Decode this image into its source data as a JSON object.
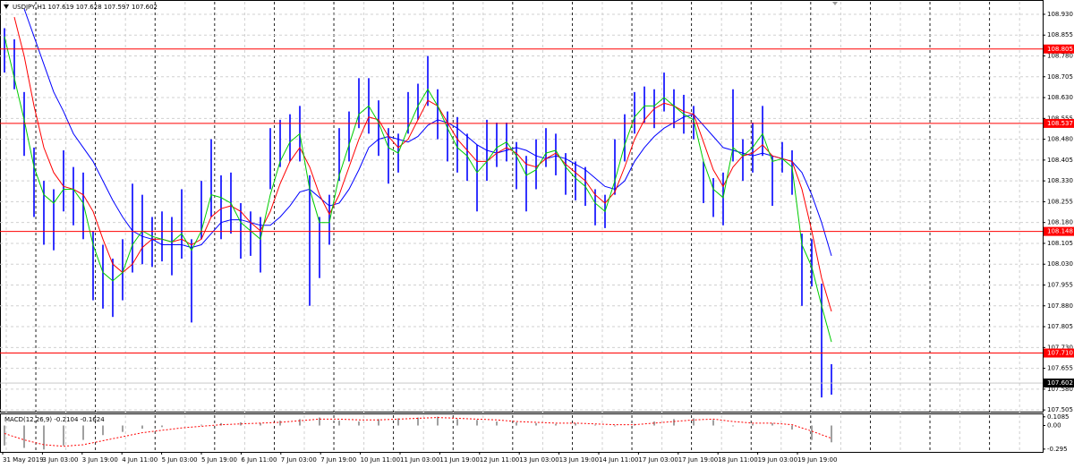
{
  "chart_data": {
    "type": "ohlc",
    "title": "USDJPY,H1 107.619 107.628 107.597 107.602",
    "ylim": [
      108.975,
      107.499
    ],
    "yticks": [
      {
        "value": 108.93,
        "label": "108.930"
      },
      108.855,
      {
        "value": 108.78,
        "label": "108.780"
      },
      108.705,
      {
        "value": 108.63,
        "label": "108.630"
      },
      108.555,
      {
        "value": 108.48,
        "label": "108.480"
      },
      108.405,
      {
        "value": 108.33,
        "label": "108.330"
      },
      108.255,
      {
        "value": 108.18,
        "label": "108.180"
      },
      108.105,
      {
        "value": 108.03,
        "label": "108.030"
      },
      107.955,
      {
        "value": 107.88,
        "label": "107.880"
      },
      107.805,
      {
        "value": 107.73,
        "label": "107.730"
      },
      107.655,
      {
        "value": 107.58,
        "label": "107.580"
      },
      107.505
    ],
    "grid": true,
    "bar_color": "#0000ff",
    "levels_color": "#ff0000",
    "levels": [
      108.805,
      108.537,
      108.148,
      {
        "value": 107.71,
        "label": "107.710"
      }
    ],
    "last_price": 107.602,
    "categories": [
      "31 May 2019",
      "3 Jun 03:00",
      "3 Jun 19:00",
      "4 Jun 11:00",
      "5 Jun 03:00",
      "5 Jun 19:00",
      "6 Jun 11:00",
      "7 Jun 03:00",
      "7 Jun 19:00",
      "10 Jun 11:00",
      "11 Jun 03:00",
      "11 Jun 19:00",
      "12 Jun 11:00",
      "13 Jun 03:00",
      "13 Jun 19:00",
      "14 Jun 11:00",
      "17 Jun 03:00",
      "17 Jun 19:00",
      "18 Jun 11:00",
      "19 Jun 03:00",
      "19 Jun 19:00"
    ],
    "high": [
      108.88,
      108.84,
      108.65,
      108.45,
      108.33,
      108.3,
      108.44,
      108.38,
      108.36,
      108.15,
      108.1,
      108.05,
      108.12,
      108.32,
      108.28,
      108.2,
      108.22,
      108.2,
      108.3,
      108.12,
      108.33,
      108.48,
      108.35,
      108.36,
      108.25,
      108.22,
      108.2,
      108.52,
      108.55,
      108.57,
      108.6,
      108.35,
      108.2,
      108.28,
      108.52,
      108.58,
      108.7,
      108.7,
      108.62,
      108.52,
      108.5,
      108.65,
      108.68,
      108.78,
      108.66,
      108.58,
      108.56,
      108.5,
      108.46,
      108.55,
      108.54,
      108.54,
      108.47,
      108.42,
      108.48,
      108.52,
      108.5,
      108.43,
      108.4,
      108.38,
      108.3,
      108.28,
      108.48,
      108.57,
      108.65,
      108.67,
      108.66,
      108.72,
      108.66,
      108.64,
      108.6,
      108.4,
      108.34,
      108.36,
      108.66,
      108.48,
      108.54,
      108.6,
      108.42,
      108.47,
      108.44,
      108.14,
      108.12,
      107.96,
      107.67
    ],
    "low": [
      108.72,
      108.66,
      108.42,
      108.2,
      108.1,
      108.08,
      108.22,
      108.17,
      108.12,
      107.9,
      107.87,
      107.84,
      107.9,
      108.0,
      108.03,
      108.02,
      108.04,
      107.99,
      108.05,
      107.82,
      108.12,
      108.2,
      108.12,
      108.14,
      108.05,
      108.06,
      108.0,
      108.3,
      108.38,
      108.4,
      108.4,
      107.88,
      107.98,
      108.1,
      108.33,
      108.4,
      108.52,
      108.5,
      108.42,
      108.32,
      108.36,
      108.5,
      108.55,
      108.6,
      108.48,
      108.4,
      108.36,
      108.33,
      108.22,
      108.33,
      108.38,
      108.4,
      108.3,
      108.22,
      108.3,
      108.38,
      108.35,
      108.28,
      108.26,
      108.24,
      108.17,
      108.16,
      108.28,
      108.4,
      108.5,
      108.54,
      108.52,
      108.58,
      108.52,
      108.5,
      108.48,
      108.25,
      108.2,
      108.17,
      108.4,
      108.33,
      108.36,
      108.42,
      108.24,
      108.36,
      108.28,
      107.88,
      107.95,
      107.55,
      107.56
    ],
    "lines": [
      {
        "color": "#0000ff",
        "values": [
          null,
          null,
          108.95,
          108.85,
          108.75,
          108.65,
          108.58,
          108.5,
          108.45,
          108.4,
          108.33,
          108.26,
          108.2,
          108.15,
          108.13,
          108.12,
          108.1,
          108.1,
          108.1,
          108.09,
          108.1,
          108.14,
          108.18,
          108.19,
          108.19,
          108.18,
          108.17,
          108.17,
          108.2,
          108.24,
          108.29,
          108.3,
          108.27,
          108.24,
          108.25,
          108.3,
          108.37,
          108.45,
          108.48,
          108.49,
          108.48,
          108.47,
          108.49,
          108.53,
          108.55,
          108.54,
          108.52,
          108.49,
          108.46,
          108.44,
          108.43,
          108.44,
          108.45,
          108.44,
          108.42,
          108.41,
          108.42,
          108.41,
          108.39,
          108.37,
          108.34,
          108.31,
          108.3,
          108.33,
          108.4,
          108.45,
          108.49,
          108.52,
          108.54,
          108.56,
          108.57,
          108.53,
          108.49,
          108.45,
          108.44,
          108.43,
          108.42,
          108.43,
          108.42,
          108.41,
          108.4,
          108.36,
          108.28,
          108.18,
          108.06
        ]
      },
      {
        "color": "#ff0000",
        "values": [
          null,
          108.92,
          108.78,
          108.6,
          108.45,
          108.36,
          108.31,
          108.3,
          108.28,
          108.22,
          108.12,
          108.03,
          108.0,
          108.03,
          108.09,
          108.12,
          108.12,
          108.11,
          108.12,
          108.1,
          108.12,
          108.2,
          108.23,
          108.24,
          108.22,
          108.18,
          108.15,
          108.22,
          108.32,
          108.4,
          108.45,
          108.38,
          108.28,
          108.21,
          108.28,
          108.38,
          108.48,
          108.56,
          108.55,
          108.49,
          108.45,
          108.48,
          108.55,
          108.62,
          108.6,
          108.54,
          108.48,
          108.44,
          108.4,
          108.4,
          108.43,
          108.45,
          108.43,
          108.39,
          108.38,
          108.41,
          108.43,
          108.39,
          108.36,
          108.33,
          108.28,
          108.25,
          108.29,
          108.38,
          108.48,
          108.55,
          108.59,
          108.61,
          108.6,
          108.58,
          108.57,
          108.47,
          108.37,
          108.31,
          108.38,
          108.42,
          108.43,
          108.46,
          108.42,
          108.41,
          108.4,
          108.3,
          108.15,
          107.98,
          107.86
        ]
      },
      {
        "color": "#00cc00",
        "values": [
          108.85,
          108.7,
          108.55,
          108.38,
          108.28,
          108.25,
          108.3,
          108.3,
          108.25,
          108.1,
          108.0,
          107.97,
          108.0,
          108.1,
          108.15,
          108.13,
          108.12,
          108.11,
          108.14,
          108.08,
          108.15,
          108.28,
          108.27,
          108.25,
          108.18,
          108.15,
          108.12,
          108.28,
          108.4,
          108.47,
          108.5,
          108.3,
          108.18,
          108.18,
          108.35,
          108.46,
          108.57,
          108.6,
          108.54,
          108.45,
          108.43,
          108.52,
          108.6,
          108.66,
          108.6,
          108.52,
          108.45,
          108.42,
          108.36,
          108.4,
          108.45,
          108.47,
          108.42,
          108.35,
          108.37,
          108.43,
          108.44,
          108.38,
          108.34,
          108.31,
          108.25,
          108.22,
          108.33,
          108.46,
          108.56,
          108.6,
          108.6,
          108.63,
          108.6,
          108.57,
          108.55,
          108.4,
          108.3,
          108.27,
          108.45,
          108.42,
          108.45,
          108.5,
          108.4,
          108.41,
          108.38,
          108.1,
          108.02,
          107.88,
          107.75
        ]
      }
    ],
    "macd": {
      "label": "MACD(12,26,9) -0.2104 -0.1624",
      "ylim": [
        0.14,
        -0.33
      ],
      "yticks": [
        0.1085,
        {
          "value": 0,
          "label": "0.00"
        },
        -0.295
      ],
      "histogram_color": "#a0a0a0",
      "signal_color": "#ff0000",
      "histogram": [
        -0.25,
        -0.28,
        -0.3,
        -0.25,
        -0.18,
        -0.12,
        -0.08,
        -0.04,
        -0.02,
        0.0,
        0.01,
        0.03,
        0.04,
        0.03,
        0.06,
        0.08,
        0.1,
        0.06,
        0.05,
        0.08,
        0.09,
        0.1,
        0.11,
        0.08,
        0.07,
        0.05,
        0.04,
        0.03,
        0.02,
        0.03,
        0.01,
        -0.01,
        0.02,
        0.05,
        0.08,
        0.09,
        0.07,
        -0.01,
        0.02,
        0.03,
        -0.05,
        -0.18,
        -0.21
      ],
      "signal": [
        -0.1,
        -0.18,
        -0.24,
        -0.26,
        -0.24,
        -0.19,
        -0.14,
        -0.09,
        -0.06,
        -0.03,
        -0.01,
        0.01,
        0.02,
        0.03,
        0.04,
        0.06,
        0.08,
        0.08,
        0.07,
        0.07,
        0.08,
        0.09,
        0.1,
        0.09,
        0.08,
        0.07,
        0.05,
        0.04,
        0.03,
        0.03,
        0.02,
        0.01,
        0.01,
        0.03,
        0.05,
        0.07,
        0.08,
        0.05,
        0.03,
        0.03,
        0.01,
        -0.07,
        -0.16
      ]
    }
  }
}
